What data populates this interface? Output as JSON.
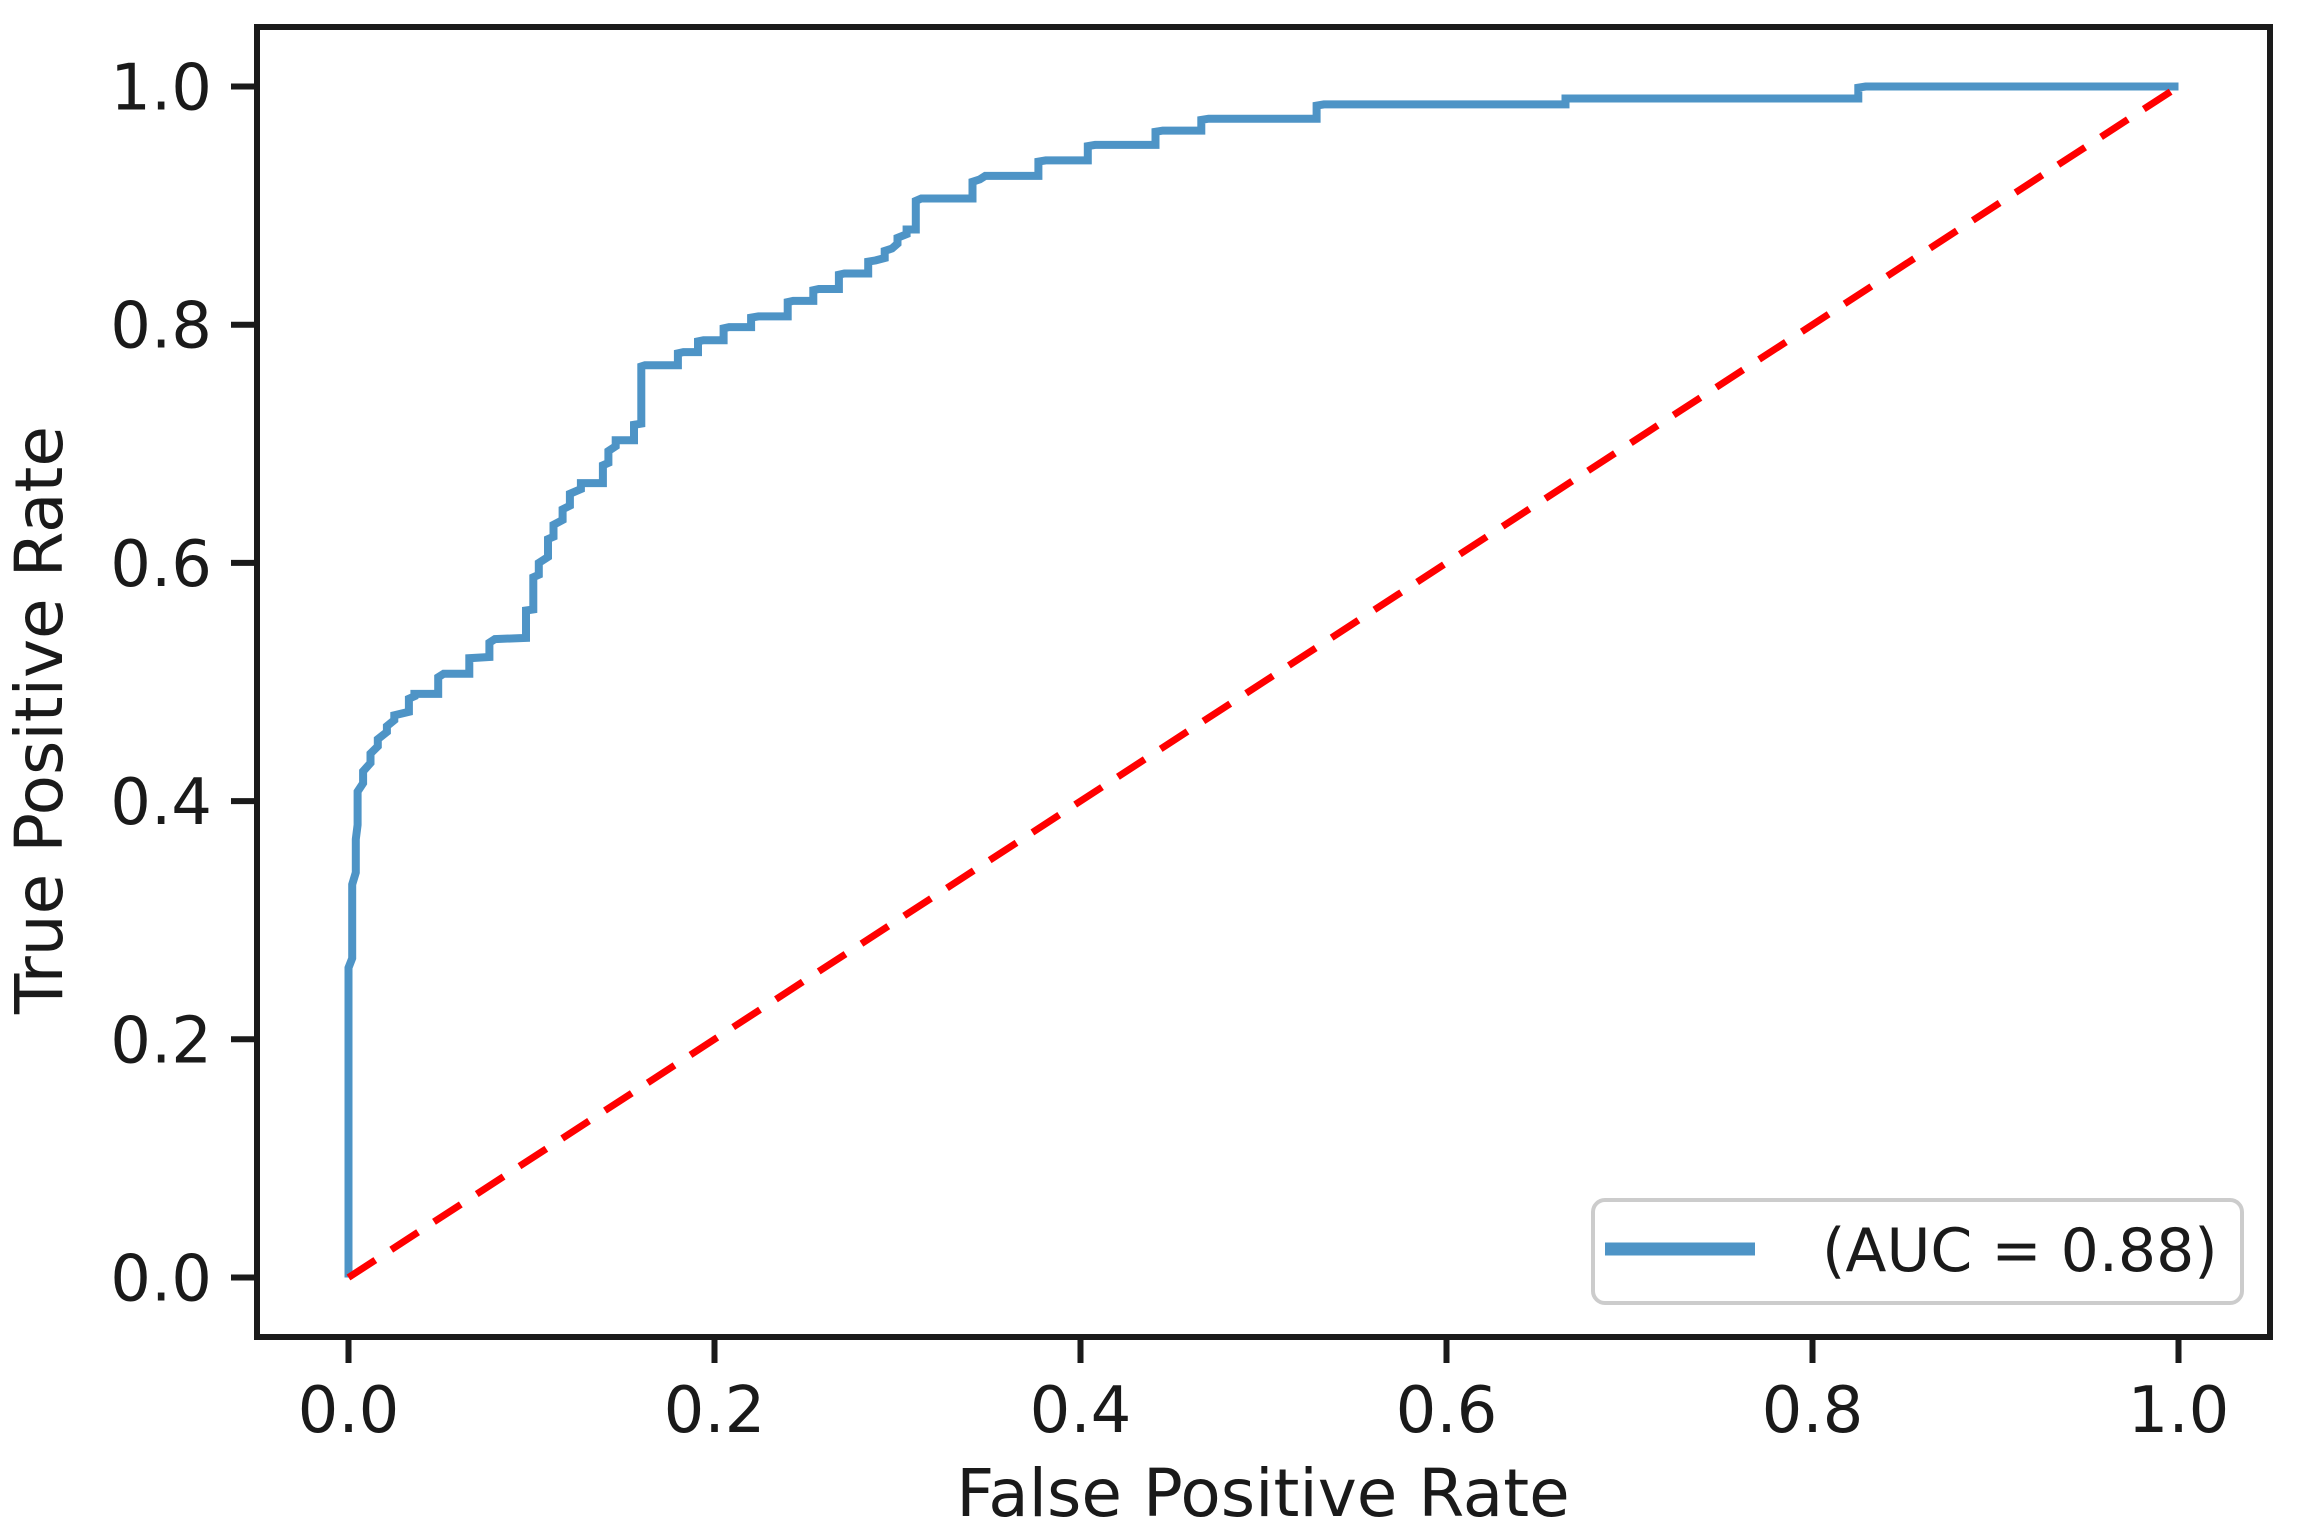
{
  "figure": {
    "xlabel": "False Positive Rate",
    "ylabel": "True Positive Rate",
    "legend": {
      "label": "(AUC = 0.88)",
      "auc_value": "0.88"
    }
  },
  "colors": {
    "roc_curve": "#4e94c6",
    "chance_line": "#ff0000",
    "axis": "#1a1a1a",
    "text": "#1a1a1a",
    "legend_border": "#cccccc",
    "legend_background": "#ffffff",
    "background": "#ffffff"
  },
  "chart_data": {
    "type": "line",
    "title": "",
    "xlabel": "False Positive Rate",
    "ylabel": "True Positive Rate",
    "xlim": [
      -0.05,
      1.05
    ],
    "ylim": [
      -0.05,
      1.05
    ],
    "xticks": [
      0.0,
      0.2,
      0.4,
      0.6,
      0.8,
      1.0
    ],
    "yticks": [
      0.0,
      0.2,
      0.4,
      0.6,
      0.8,
      1.0
    ],
    "xtick_labels": [
      "0.0",
      "0.2",
      "0.4",
      "0.6",
      "0.8",
      "1.0"
    ],
    "ytick_labels": [
      "0.0",
      "0.2",
      "0.4",
      "0.6",
      "0.8",
      "1.0"
    ],
    "grid": false,
    "legend_position": "lower right",
    "series": [
      {
        "name": "(AUC = 0.88)",
        "kind": "roc_curve",
        "color": "#4e94c6",
        "style": "solid",
        "points": [
          [
            0,
            0
          ],
          [
            0,
            0.26
          ],
          [
            0.002,
            0.268
          ],
          [
            0.002,
            0.33
          ],
          [
            0.004,
            0.34
          ],
          [
            0.004,
            0.368
          ],
          [
            0.005,
            0.38
          ],
          [
            0.005,
            0.408
          ],
          [
            0.008,
            0.415
          ],
          [
            0.008,
            0.425
          ],
          [
            0.012,
            0.432
          ],
          [
            0.012,
            0.44
          ],
          [
            0.016,
            0.446
          ],
          [
            0.016,
            0.452
          ],
          [
            0.021,
            0.458
          ],
          [
            0.021,
            0.463
          ],
          [
            0.025,
            0.468
          ],
          [
            0.025,
            0.472
          ],
          [
            0.033,
            0.475
          ],
          [
            0.033,
            0.486
          ],
          [
            0.036,
            0.488
          ],
          [
            0.036,
            0.49
          ],
          [
            0.049,
            0.49
          ],
          [
            0.049,
            0.504
          ],
          [
            0.052,
            0.507
          ],
          [
            0.066,
            0.507
          ],
          [
            0.066,
            0.52
          ],
          [
            0.077,
            0.521
          ],
          [
            0.077,
            0.533
          ],
          [
            0.08,
            0.536
          ],
          [
            0.097,
            0.537
          ],
          [
            0.097,
            0.56
          ],
          [
            0.101,
            0.561
          ],
          [
            0.101,
            0.588
          ],
          [
            0.104,
            0.59
          ],
          [
            0.104,
            0.6
          ],
          [
            0.109,
            0.605
          ],
          [
            0.109,
            0.62
          ],
          [
            0.112,
            0.622
          ],
          [
            0.112,
            0.632
          ],
          [
            0.117,
            0.636
          ],
          [
            0.117,
            0.645
          ],
          [
            0.121,
            0.648
          ],
          [
            0.121,
            0.658
          ],
          [
            0.127,
            0.662
          ],
          [
            0.127,
            0.667
          ],
          [
            0.139,
            0.667
          ],
          [
            0.139,
            0.682
          ],
          [
            0.142,
            0.684
          ],
          [
            0.142,
            0.694
          ],
          [
            0.146,
            0.698
          ],
          [
            0.146,
            0.703
          ],
          [
            0.156,
            0.703
          ],
          [
            0.156,
            0.716
          ],
          [
            0.16,
            0.717
          ],
          [
            0.16,
            0.765
          ],
          [
            0.162,
            0.766
          ],
          [
            0.18,
            0.766
          ],
          [
            0.18,
            0.776
          ],
          [
            0.183,
            0.777
          ],
          [
            0.191,
            0.777
          ],
          [
            0.191,
            0.786
          ],
          [
            0.194,
            0.787
          ],
          [
            0.205,
            0.787
          ],
          [
            0.205,
            0.797
          ],
          [
            0.208,
            0.798
          ],
          [
            0.22,
            0.798
          ],
          [
            0.22,
            0.806
          ],
          [
            0.224,
            0.807
          ],
          [
            0.24,
            0.807
          ],
          [
            0.24,
            0.819
          ],
          [
            0.243,
            0.82
          ],
          [
            0.254,
            0.82
          ],
          [
            0.254,
            0.829
          ],
          [
            0.257,
            0.83
          ],
          [
            0.268,
            0.83
          ],
          [
            0.268,
            0.842
          ],
          [
            0.271,
            0.843
          ],
          [
            0.284,
            0.843
          ],
          [
            0.284,
            0.853
          ],
          [
            0.288,
            0.854
          ],
          [
            0.293,
            0.856
          ],
          [
            0.293,
            0.862
          ],
          [
            0.297,
            0.864
          ],
          [
            0.3,
            0.868
          ],
          [
            0.3,
            0.873
          ],
          [
            0.305,
            0.876
          ],
          [
            0.305,
            0.88
          ],
          [
            0.31,
            0.88
          ],
          [
            0.31,
            0.904
          ],
          [
            0.313,
            0.906
          ],
          [
            0.341,
            0.906
          ],
          [
            0.341,
            0.92
          ],
          [
            0.345,
            0.922
          ],
          [
            0.348,
            0.925
          ],
          [
            0.377,
            0.925
          ],
          [
            0.377,
            0.937
          ],
          [
            0.381,
            0.938
          ],
          [
            0.404,
            0.938
          ],
          [
            0.404,
            0.95
          ],
          [
            0.408,
            0.951
          ],
          [
            0.441,
            0.951
          ],
          [
            0.441,
            0.962
          ],
          [
            0.445,
            0.963
          ],
          [
            0.466,
            0.963
          ],
          [
            0.466,
            0.972
          ],
          [
            0.47,
            0.973
          ],
          [
            0.529,
            0.973
          ],
          [
            0.529,
            0.984
          ],
          [
            0.533,
            0.985
          ],
          [
            0.665,
            0.985
          ],
          [
            0.665,
            0.99
          ],
          [
            0.669,
            0.99
          ],
          [
            0.825,
            0.99
          ],
          [
            0.825,
            0.999
          ],
          [
            0.829,
            1
          ],
          [
            1,
            1
          ]
        ]
      },
      {
        "name": "chance-diagonal",
        "kind": "chance_line",
        "color": "#ff0000",
        "style": "dashed",
        "points": [
          [
            0,
            0
          ],
          [
            1,
            1
          ]
        ]
      }
    ]
  }
}
